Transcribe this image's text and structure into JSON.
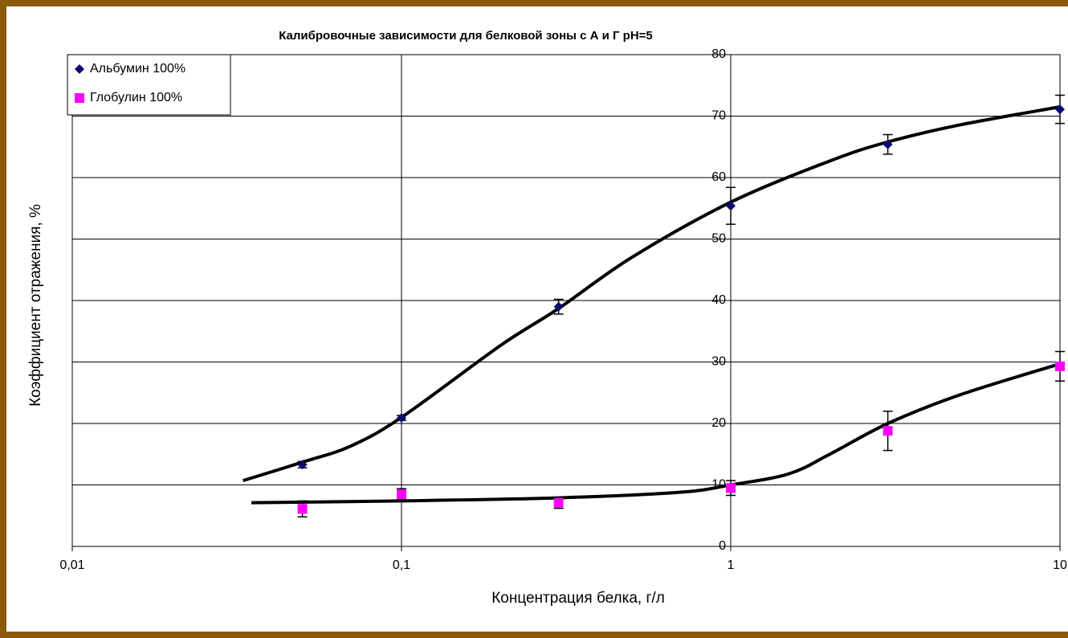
{
  "chart_data": {
    "type": "scatter",
    "title": "Калибровочные зависимости для белковой зоны с А и Г pH=5",
    "x_label": "Концентрация белка, г/л",
    "y_label": "Коэффициент отражения, %",
    "xlog": true,
    "xlim": [
      0.01,
      10
    ],
    "xticks": [
      {
        "value": 0.01,
        "label": "0,01"
      },
      {
        "value": 0.1,
        "label": "0,1"
      },
      1,
      10
    ],
    "ylim": [
      0,
      80
    ],
    "yticks": [
      0,
      10,
      20,
      30,
      40,
      50,
      60,
      70,
      80
    ],
    "grid": true,
    "legend": "top-left",
    "series": [
      {
        "name": "Альбумин 100%",
        "color": "#0a0a6e",
        "marker": "diamond",
        "x": [
          0.05,
          0.1,
          0.3,
          1,
          3,
          10
        ],
        "values": [
          13.3,
          20.9,
          39.0,
          55.4,
          65.4,
          71.1
        ],
        "errors": [
          0.5,
          0.4,
          1.2,
          3.0,
          1.6,
          2.3
        ]
      },
      {
        "name": "Глобулин 100%",
        "color": "#ff00ff",
        "marker": "square",
        "x": [
          0.05,
          0.1,
          0.3,
          1,
          3,
          10
        ],
        "values": [
          6.1,
          8.5,
          7.1,
          9.5,
          18.8,
          29.3
        ],
        "errors": [
          1.3,
          0.9,
          0.9,
          1.2,
          3.2,
          2.4
        ]
      }
    ],
    "trendlines": [
      {
        "color": "#000000",
        "x": [
          0.033,
          0.05,
          0.07,
          0.1,
          0.2,
          0.3,
          0.5,
          1,
          2,
          3,
          5,
          10
        ],
        "values": [
          10.7,
          13.7,
          16.3,
          21.0,
          32.7,
          38.7,
          47.0,
          56.0,
          62.7,
          65.8,
          68.6,
          71.5
        ]
      },
      {
        "color": "#000000",
        "x": [
          0.035,
          0.1,
          0.3,
          0.7,
          1,
          1.5,
          2,
          3,
          5,
          10
        ],
        "values": [
          7.1,
          7.4,
          7.9,
          8.8,
          10.0,
          11.8,
          15.0,
          20.0,
          24.7,
          29.7
        ]
      }
    ]
  }
}
